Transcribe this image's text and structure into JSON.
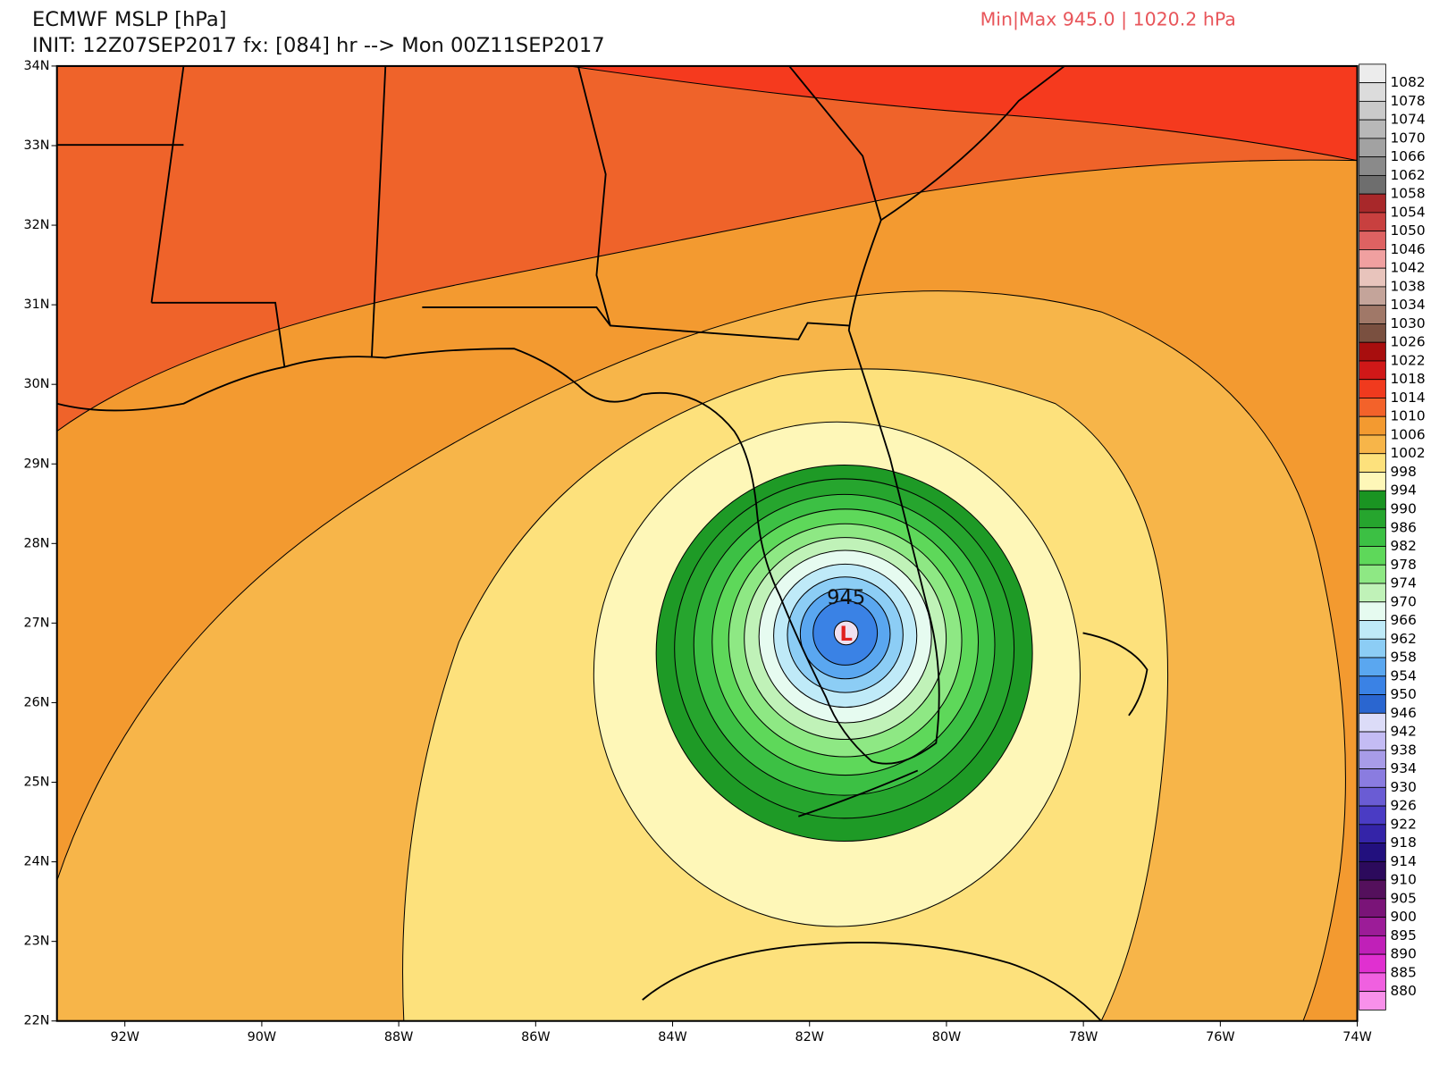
{
  "header": {
    "title": "ECMWF MSLP [hPa]",
    "init_line": "INIT: 12Z07SEP2017 fx: [084] hr --> Mon 00Z11SEP2017",
    "minmax": "Min|Max 945.0 | 1020.2 hPa"
  },
  "map": {
    "lat_labels": [
      "34N",
      "33N",
      "32N",
      "31N",
      "30N",
      "29N",
      "28N",
      "27N",
      "26N",
      "25N",
      "24N",
      "23N",
      "22N"
    ],
    "lon_labels": [
      "92W",
      "90W",
      "88W",
      "86W",
      "84W",
      "82W",
      "80W",
      "78W",
      "76W",
      "74W"
    ],
    "center_label": "945",
    "low_marker": "L"
  },
  "colorbar": {
    "labels": [
      "1082",
      "1078",
      "1074",
      "1070",
      "1066",
      "1062",
      "1058",
      "1054",
      "1050",
      "1046",
      "1042",
      "1038",
      "1034",
      "1030",
      "1026",
      "1022",
      "1018",
      "1014",
      "1010",
      "1006",
      "1002",
      "998",
      "994",
      "990",
      "986",
      "982",
      "978",
      "974",
      "970",
      "966",
      "962",
      "958",
      "954",
      "950",
      "946",
      "942",
      "938",
      "934",
      "930",
      "926",
      "922",
      "918",
      "914",
      "910",
      "905",
      "900",
      "895",
      "890",
      "885",
      "880"
    ],
    "colors": [
      "#ececec",
      "#dcdcdc",
      "#cacaca",
      "#b8b8b8",
      "#a2a2a2",
      "#8a8a8a",
      "#6e6e6e",
      "#a8282a",
      "#c8403f",
      "#de6262",
      "#f0a0a0",
      "#e8c4bc",
      "#c4a49a",
      "#a07868",
      "#7a5040",
      "#a80e0e",
      "#d01818",
      "#f03a1e",
      "#f3622a",
      "#f39a30",
      "#f7b549",
      "#fde17c",
      "#fef7b8",
      "#1a9422",
      "#26a52e",
      "#3cc044",
      "#5ed85a",
      "#8ee884",
      "#c0f2b8",
      "#e6fbf0",
      "#bfeaf8",
      "#8ccdf5",
      "#5aa7f0",
      "#3a82e5",
      "#2a66d0",
      "#dcdcf8",
      "#c4bcf4",
      "#a89ce8",
      "#8a7ce0",
      "#6a5cd4",
      "#4a3cc4",
      "#3424a8",
      "#22107e",
      "#2c0a5c",
      "#54105c",
      "#7a1478",
      "#9c1c98",
      "#c020b8",
      "#e030d0",
      "#f060e0",
      "#f890ea"
    ]
  }
}
